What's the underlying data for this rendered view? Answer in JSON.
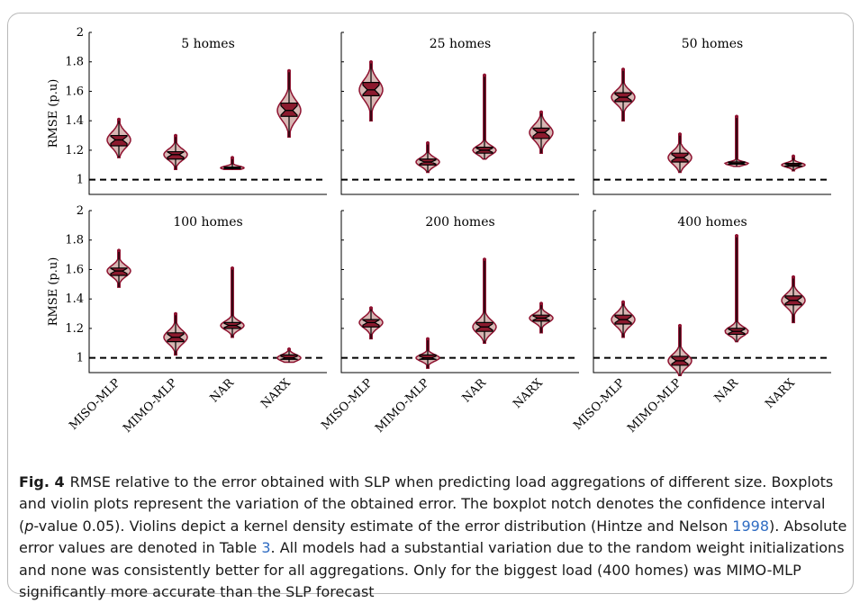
{
  "chart_data": {
    "type": "violin",
    "ylabel": "RMSE (p.u)",
    "ylim": [
      0.9,
      2.0
    ],
    "yticks": [
      "1",
      "1.2",
      "1.4",
      "1.6",
      "1.8",
      "2"
    ],
    "reference_line": 1,
    "categories": [
      "MISO-MLP",
      "MIMO-MLP",
      "NAR",
      "NARX"
    ],
    "panels": [
      {
        "title": "5 homes",
        "groups": [
          {
            "model": "MISO-MLP",
            "min": 1.15,
            "q1": 1.23,
            "median": 1.27,
            "q3": 1.3,
            "max": 1.41
          },
          {
            "model": "MIMO-MLP",
            "min": 1.07,
            "q1": 1.14,
            "median": 1.17,
            "q3": 1.19,
            "max": 1.3
          },
          {
            "model": "NAR",
            "min": 1.07,
            "q1": 1.075,
            "median": 1.08,
            "q3": 1.085,
            "max": 1.15
          },
          {
            "model": "NARX",
            "min": 1.29,
            "q1": 1.43,
            "median": 1.47,
            "q3": 1.52,
            "max": 1.74
          }
        ]
      },
      {
        "title": "25 homes",
        "groups": [
          {
            "model": "MISO-MLP",
            "min": 1.4,
            "q1": 1.57,
            "median": 1.61,
            "q3": 1.66,
            "max": 1.8
          },
          {
            "model": "MIMO-MLP",
            "min": 1.05,
            "q1": 1.1,
            "median": 1.12,
            "q3": 1.14,
            "max": 1.25
          },
          {
            "model": "NAR",
            "min": 1.14,
            "q1": 1.18,
            "median": 1.2,
            "q3": 1.22,
            "max": 1.71
          },
          {
            "model": "NARX",
            "min": 1.18,
            "q1": 1.28,
            "median": 1.32,
            "q3": 1.35,
            "max": 1.46
          }
        ]
      },
      {
        "title": "50 homes",
        "groups": [
          {
            "model": "MISO-MLP",
            "min": 1.4,
            "q1": 1.53,
            "median": 1.56,
            "q3": 1.59,
            "max": 1.75
          },
          {
            "model": "MIMO-MLP",
            "min": 1.05,
            "q1": 1.12,
            "median": 1.15,
            "q3": 1.18,
            "max": 1.31
          },
          {
            "model": "NAR",
            "min": 1.09,
            "q1": 1.105,
            "median": 1.11,
            "q3": 1.12,
            "max": 1.43
          },
          {
            "model": "NARX",
            "min": 1.06,
            "q1": 1.09,
            "median": 1.1,
            "q3": 1.11,
            "max": 1.16
          }
        ]
      },
      {
        "title": "100 homes",
        "groups": [
          {
            "model": "MISO-MLP",
            "min": 1.48,
            "q1": 1.56,
            "median": 1.59,
            "q3": 1.61,
            "max": 1.73
          },
          {
            "model": "MIMO-MLP",
            "min": 1.02,
            "q1": 1.11,
            "median": 1.14,
            "q3": 1.17,
            "max": 1.3
          },
          {
            "model": "NAR",
            "min": 1.14,
            "q1": 1.2,
            "median": 1.22,
            "q3": 1.24,
            "max": 1.61
          },
          {
            "model": "NARX",
            "min": 0.97,
            "q1": 0.99,
            "median": 1.0,
            "q3": 1.02,
            "max": 1.06
          }
        ]
      },
      {
        "title": "200 homes",
        "groups": [
          {
            "model": "MISO-MLP",
            "min": 1.13,
            "q1": 1.21,
            "median": 1.24,
            "q3": 1.26,
            "max": 1.34
          },
          {
            "model": "MIMO-MLP",
            "min": 0.93,
            "q1": 0.99,
            "median": 1.0,
            "q3": 1.02,
            "max": 1.13
          },
          {
            "model": "NAR",
            "min": 1.1,
            "q1": 1.18,
            "median": 1.21,
            "q3": 1.24,
            "max": 1.67
          },
          {
            "model": "NARX",
            "min": 1.17,
            "q1": 1.25,
            "median": 1.27,
            "q3": 1.29,
            "max": 1.37
          }
        ]
      },
      {
        "title": "400 homes",
        "groups": [
          {
            "model": "MISO-MLP",
            "min": 1.14,
            "q1": 1.23,
            "median": 1.26,
            "q3": 1.29,
            "max": 1.38
          },
          {
            "model": "MIMO-MLP",
            "min": 0.88,
            "q1": 0.95,
            "median": 0.98,
            "q3": 1.01,
            "max": 1.22
          },
          {
            "model": "NAR",
            "min": 1.11,
            "q1": 1.16,
            "median": 1.18,
            "q3": 1.2,
            "max": 1.83
          },
          {
            "model": "NARX",
            "min": 1.24,
            "q1": 1.36,
            "median": 1.39,
            "q3": 1.42,
            "max": 1.55
          }
        ]
      }
    ],
    "colors": {
      "violin_fill": "#d8b7b4",
      "violin_edge": "#8e1230",
      "box_fill": "#8c1a2e",
      "whisker": "#000000"
    }
  },
  "caption": {
    "label": "Fig. 4",
    "text_1": "RMSE relative to the error obtained with SLP when predicting load aggregations of different size. Boxplots and violin plots represent the variation of the obtained error. The boxplot notch denotes the confidence interval (",
    "p_italic": "p",
    "text_2": "-value 0.05). Violins depict a kernel density estimate of the error distribution (Hintze and Nelson ",
    "ref_year": "1998",
    "text_3": "). Absolute error values are denoted in Table ",
    "ref_table": "3",
    "text_4": ". All models had a substantial variation due to the random weight initializations and none was consistently better for all aggregations. Only for the biggest load (400 homes) was MIMO-MLP significantly more accurate than the SLP forecast"
  }
}
